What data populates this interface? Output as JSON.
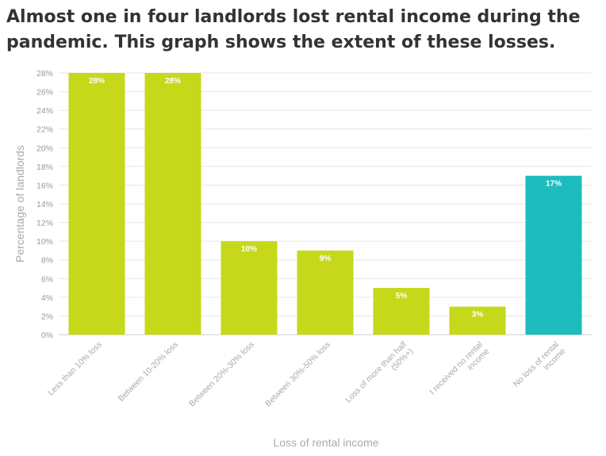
{
  "title_lines": [
    "Almost one in four landlords lost rental income during the",
    "pandemic. This graph shows the extent of these losses."
  ],
  "colors": {
    "primary": "#c5d91a",
    "highlight": "#1dbcbf",
    "grid": "#e6e6e6",
    "text": "#333333",
    "axis_text": "#999999"
  },
  "chart_data": {
    "type": "bar",
    "title": "Almost one in four landlords lost rental income during the pandemic. This graph shows the extent of these losses.",
    "xlabel": "Loss of rental income",
    "ylabel": "Percentage of landlords",
    "ylim": [
      0,
      28
    ],
    "ytick_step": 2,
    "ytick_suffix": "%",
    "grid": true,
    "categories": [
      [
        "Less than 10% loss"
      ],
      [
        "Between 10-20% loss"
      ],
      [
        "Between 20%-30% loss"
      ],
      [
        "Between 30%-50% loss"
      ],
      [
        "Loss of more than half",
        "(50%+)"
      ],
      [
        "I received no rental",
        "income"
      ],
      [
        "No loss of rental",
        "income"
      ]
    ],
    "values": [
      28,
      28,
      10,
      9,
      5,
      3,
      17
    ],
    "data_labels": [
      "28%",
      "28%",
      "10%",
      "9%",
      "5%",
      "3%",
      "17%"
    ],
    "bar_colors": [
      "#c5d91a",
      "#c5d91a",
      "#c5d91a",
      "#c5d91a",
      "#c5d91a",
      "#c5d91a",
      "#1dbcbf"
    ]
  }
}
